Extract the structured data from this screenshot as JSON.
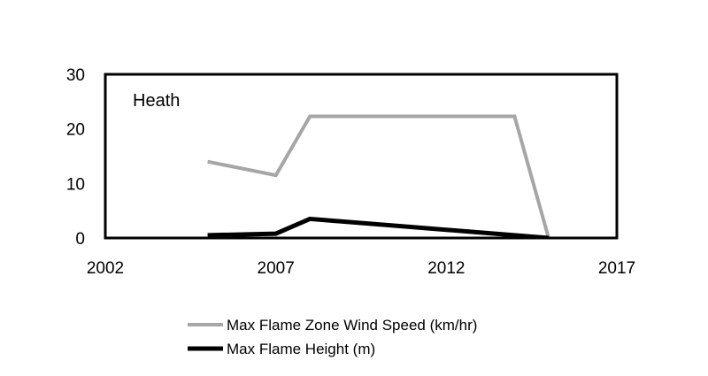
{
  "chart_data": {
    "type": "line",
    "annotation": "Heath",
    "xlim": [
      2002,
      2017
    ],
    "ylim": [
      0,
      30
    ],
    "x_ticks": [
      "2002",
      "2007",
      "2012",
      "2017"
    ],
    "y_ticks": [
      "0",
      "10",
      "20",
      "30"
    ],
    "grid": false,
    "legend_position": "bottom",
    "series": [
      {
        "name": "Max Flame Zone Wind Speed (km/hr)",
        "color": "#a6a6a6",
        "x": [
          2005,
          2007,
          2008,
          2014,
          2015
        ],
        "y": [
          14,
          11.5,
          22.3,
          22.3,
          0
        ]
      },
      {
        "name": "Max Flame Height (m)",
        "color": "#000000",
        "x": [
          2005,
          2007,
          2008,
          2015
        ],
        "y": [
          0.5,
          0.8,
          3.5,
          0
        ]
      }
    ]
  }
}
